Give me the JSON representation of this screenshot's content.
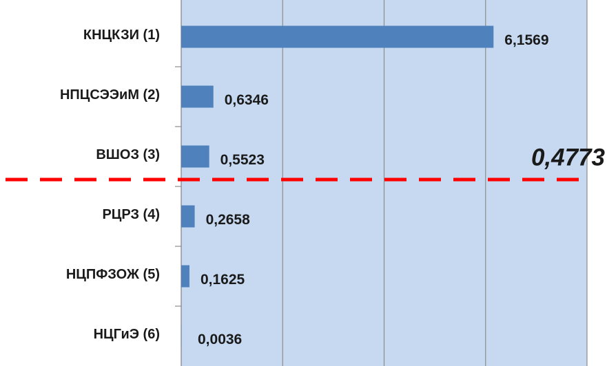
{
  "chart_data": {
    "type": "bar",
    "orientation": "horizontal",
    "categories": [
      "КНЦКЗИ (1)",
      "НПЦСЭЭиМ (2)",
      "ВШОЗ (3)",
      "РЦРЗ (4)",
      "НЦПФЗОЖ (5)",
      "НЦГиЭ (6)"
    ],
    "values": [
      6.1569,
      0.6346,
      0.5523,
      0.2658,
      0.1625,
      0.0036
    ],
    "value_labels": [
      "6,1569",
      "0,6346",
      "0,5523",
      "0,2658",
      "0,1625",
      "0,0036"
    ],
    "color": "#4f81bd",
    "xlim": [
      0,
      8
    ],
    "xticks": [
      0,
      2,
      4,
      6,
      8
    ],
    "grid": true,
    "threshold": {
      "value": 0.4773,
      "label": "0,4773",
      "color": "#ff0000"
    }
  }
}
